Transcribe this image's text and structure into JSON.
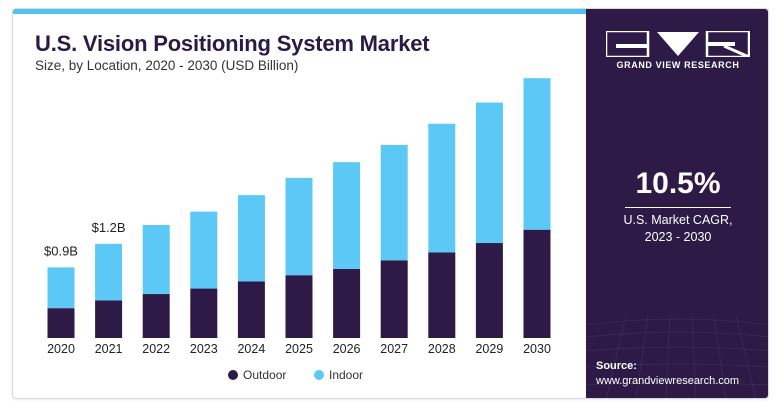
{
  "title": "U.S. Vision Positioning System Market",
  "subtitle": "Size, by Location, 2020 - 2030 (USD Billion)",
  "brand": {
    "name": "GRAND VIEW RESEARCH",
    "logo_icon": "grand-view-research-logo"
  },
  "stat": {
    "value": "10.5%",
    "label_line1": "U.S. Market CAGR,",
    "label_line2": "2023 - 2030"
  },
  "source": {
    "label": "Source:",
    "url": "www.grandviewresearch.com"
  },
  "colors": {
    "outdoor": "#2e1a47",
    "indoor": "#5bc8f5",
    "panel": "#2e1a47",
    "accent": "#4fc3f0"
  },
  "chart_data": {
    "type": "bar",
    "stacked": true,
    "title": "U.S. Vision Positioning System Market",
    "subtitle": "Size, by Location, 2020 - 2030 (USD Billion)",
    "categories": [
      "2020",
      "2021",
      "2022",
      "2023",
      "2024",
      "2025",
      "2026",
      "2027",
      "2028",
      "2029",
      "2030"
    ],
    "series": [
      {
        "name": "Outdoor",
        "color": "#2e1a47",
        "values": [
          0.38,
          0.48,
          0.56,
          0.63,
          0.72,
          0.8,
          0.88,
          0.99,
          1.09,
          1.21,
          1.38
        ]
      },
      {
        "name": "Indoor",
        "color": "#5bc8f5",
        "values": [
          0.52,
          0.72,
          0.88,
          0.98,
          1.1,
          1.24,
          1.36,
          1.47,
          1.64,
          1.79,
          1.93
        ]
      }
    ],
    "data_labels": [
      {
        "category": "2020",
        "text": "$0.9B"
      },
      {
        "category": "2021",
        "text": "$1.2B"
      }
    ],
    "ylim": [
      0,
      3.3
    ],
    "grid": false,
    "legend": "bottom-center",
    "legend_entries": [
      "Outdoor",
      "Indoor"
    ]
  }
}
